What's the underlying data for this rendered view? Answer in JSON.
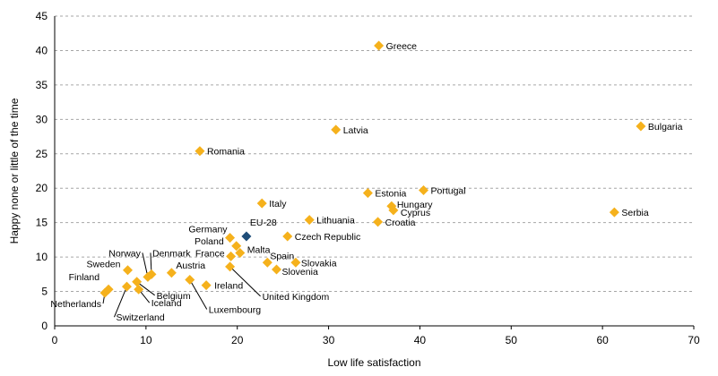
{
  "chart_data": {
    "type": "scatter",
    "title": "",
    "xlabel": "Low life satisfaction",
    "ylabel": "Happy none or little of the time",
    "xlim": [
      0,
      70
    ],
    "ylim": [
      0,
      45
    ],
    "x_ticks": [
      0,
      10,
      20,
      30,
      40,
      50,
      60,
      70
    ],
    "y_ticks": [
      0,
      5,
      10,
      15,
      20,
      25,
      30,
      35,
      40,
      45
    ],
    "grid": "horizontal dashed",
    "colors": {
      "country": "#f5b11c",
      "highlight": "#1f4e79"
    },
    "points": [
      {
        "label": "Greece",
        "x": 35.5,
        "y": 40.7
      },
      {
        "label": "Latvia",
        "x": 30.8,
        "y": 28.5
      },
      {
        "label": "Bulgaria",
        "x": 64.2,
        "y": 29.0
      },
      {
        "label": "Romania",
        "x": 15.9,
        "y": 25.4
      },
      {
        "label": "Estonia",
        "x": 34.3,
        "y": 19.3
      },
      {
        "label": "Portugal",
        "x": 40.4,
        "y": 19.7
      },
      {
        "label": "Hungary",
        "x": 36.9,
        "y": 17.4
      },
      {
        "label": "Cyprus",
        "x": 37.1,
        "y": 16.8
      },
      {
        "label": "Italy",
        "x": 22.7,
        "y": 17.8
      },
      {
        "label": "Lithuania",
        "x": 27.9,
        "y": 15.4
      },
      {
        "label": "Croatia",
        "x": 35.4,
        "y": 15.1
      },
      {
        "label": "Serbia",
        "x": 61.3,
        "y": 16.5
      },
      {
        "label": "EU-28",
        "x": 21.0,
        "y": 13.0,
        "highlight": true
      },
      {
        "label": "Germany",
        "x": 19.2,
        "y": 12.8
      },
      {
        "label": "Poland",
        "x": 19.9,
        "y": 11.6
      },
      {
        "label": "Malta",
        "x": 20.3,
        "y": 10.6
      },
      {
        "label": "France",
        "x": 19.3,
        "y": 10.1
      },
      {
        "label": "Czech Republic",
        "x": 25.5,
        "y": 13.0
      },
      {
        "label": "Spain",
        "x": 23.3,
        "y": 9.2
      },
      {
        "label": "Slovakia",
        "x": 26.4,
        "y": 9.2
      },
      {
        "label": "Slovenia",
        "x": 24.3,
        "y": 8.2
      },
      {
        "label": "United Kingdom",
        "x": 19.2,
        "y": 8.6
      },
      {
        "label": "Ireland",
        "x": 16.6,
        "y": 5.9
      },
      {
        "label": "Luxembourg",
        "x": 14.8,
        "y": 6.7
      },
      {
        "label": "Austria",
        "x": 12.8,
        "y": 7.7
      },
      {
        "label": "Denmark",
        "x": 10.6,
        "y": 7.5
      },
      {
        "label": "Norway",
        "x": 10.2,
        "y": 7.1
      },
      {
        "label": "Sweden",
        "x": 8.0,
        "y": 8.1
      },
      {
        "label": "Belgium",
        "x": 9.0,
        "y": 6.4
      },
      {
        "label": "Iceland",
        "x": 9.2,
        "y": 5.3
      },
      {
        "label": "Finland",
        "x": 5.9,
        "y": 5.3
      },
      {
        "label": "Netherlands",
        "x": 5.5,
        "y": 4.8
      },
      {
        "label": "Switzerland",
        "x": 7.9,
        "y": 5.7
      }
    ]
  }
}
